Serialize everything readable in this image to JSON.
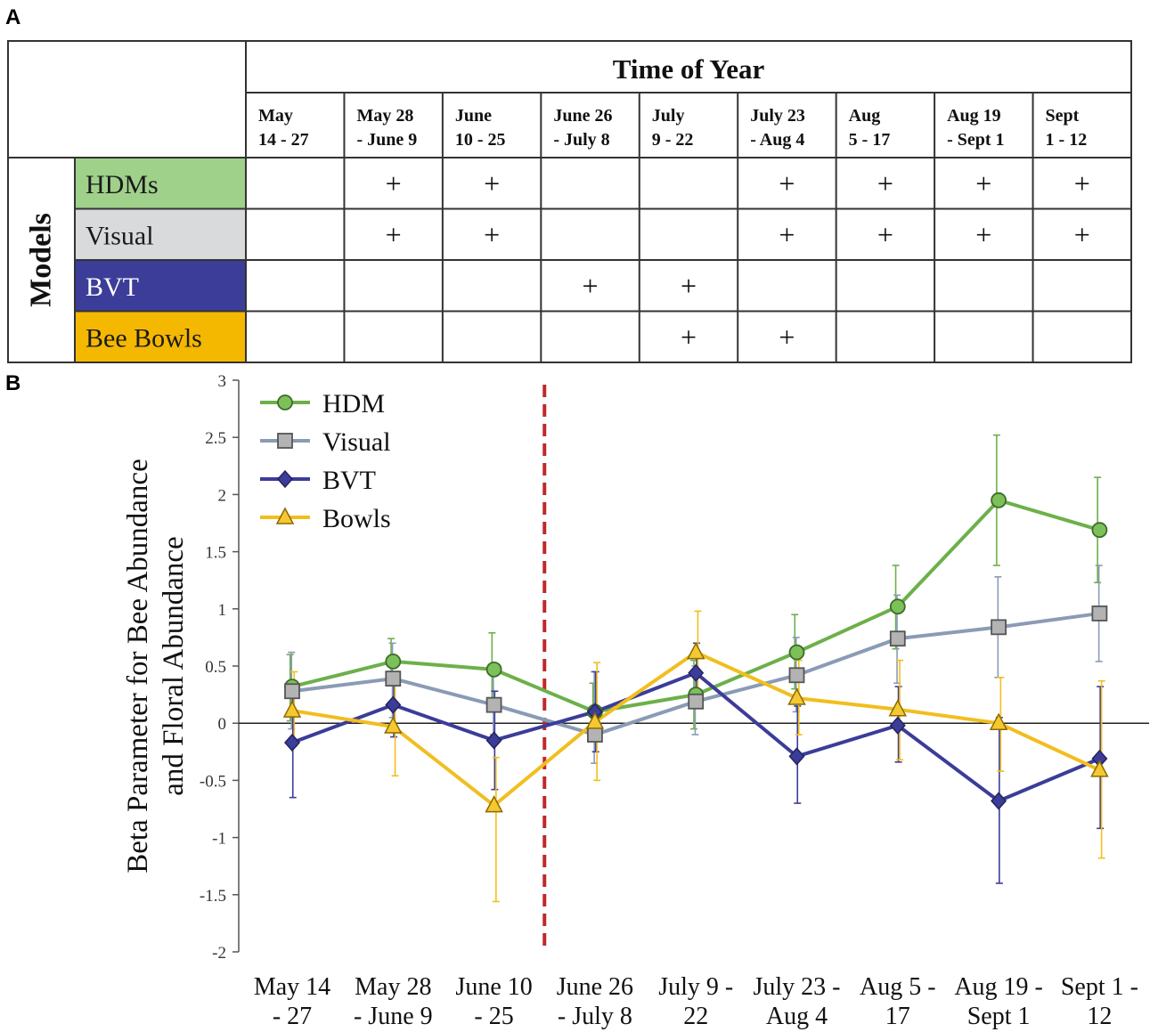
{
  "panels": {
    "a": "A",
    "b": "B"
  },
  "table": {
    "header_title": "Time of Year",
    "row_group_label": "Models",
    "periods": [
      [
        "May",
        "14 - 27"
      ],
      [
        "May 28",
        "- June 9"
      ],
      [
        "June",
        "10 - 25"
      ],
      [
        "June 26",
        "- July 8"
      ],
      [
        "July",
        "9 - 22"
      ],
      [
        "July 23",
        "- Aug 4"
      ],
      [
        "Aug",
        "5 - 17"
      ],
      [
        "Aug 19",
        "- Sept 1"
      ],
      [
        "Sept",
        "1 - 12"
      ]
    ],
    "mark": "+",
    "rows": [
      {
        "label": "HDMs",
        "bg": "#9fd18b",
        "fg": "#1a1a1a",
        "marks": [
          0,
          1,
          1,
          0,
          0,
          1,
          1,
          1,
          1
        ]
      },
      {
        "label": "Visual",
        "bg": "#d9dadb",
        "fg": "#1a1a1a",
        "marks": [
          0,
          1,
          1,
          0,
          0,
          1,
          1,
          1,
          1
        ]
      },
      {
        "label": "BVT",
        "bg": "#3c3c99",
        "fg": "#ffffff",
        "marks": [
          0,
          0,
          0,
          1,
          1,
          0,
          0,
          0,
          0
        ]
      },
      {
        "label": "Bee Bowls",
        "bg": "#f5b800",
        "fg": "#1a1a1a",
        "marks": [
          0,
          0,
          0,
          0,
          1,
          1,
          0,
          0,
          0
        ]
      }
    ]
  },
  "chart_data": {
    "type": "line",
    "ylabel": "Beta Parameter for Bee Abundance and Floral Abundance",
    "ylabel_lines": [
      "Beta Parameter for Bee Abundance",
      "and Floral Abundance"
    ],
    "ylim": [
      -2,
      3
    ],
    "yticks": [
      3,
      2.5,
      2,
      1.5,
      1,
      0.5,
      0,
      -0.5,
      -1,
      -1.5,
      -2
    ],
    "ytick_labels": [
      "3",
      "2.5",
      "2",
      "1.5",
      "1",
      "0.5",
      "0",
      "-0.5",
      "-1",
      "-1.5",
      "-2"
    ],
    "categories": [
      "May 14 - 27",
      "May 28 - June 9",
      "June 10 - 25",
      "June 26 - July 8",
      "July 9 - 22",
      "July 23 - Aug 4",
      "Aug 5 - 17",
      "Aug 19 - Sept 1",
      "Sept 1 - 12"
    ],
    "category_lines": [
      [
        "May 14",
        "- 27"
      ],
      [
        "May 28",
        "- June 9"
      ],
      [
        "June 10",
        "- 25"
      ],
      [
        "June 26",
        "- July 8"
      ],
      [
        "July 9 -",
        "22"
      ],
      [
        "July 23 -",
        "Aug 4"
      ],
      [
        "Aug 5 -",
        "17"
      ],
      [
        "Aug 19 -",
        "Sept 1"
      ],
      [
        "Sept 1 -",
        "12"
      ]
    ],
    "divider_between": [
      2,
      3
    ],
    "divider_color": "#c0282a",
    "legend_position": "top-left",
    "series": [
      {
        "name": "HDM",
        "marker": "circle",
        "color": "#6cb04a",
        "fill": "#7cc05a",
        "values": [
          0.32,
          0.54,
          0.47,
          0.1,
          0.25,
          0.62,
          1.02,
          1.95,
          1.69
        ],
        "err_low": [
          0.02,
          0.35,
          0.15,
          -0.15,
          -0.05,
          0.3,
          0.65,
          1.38,
          1.23
        ],
        "err_high": [
          0.6,
          0.74,
          0.79,
          0.35,
          0.55,
          0.95,
          1.38,
          2.52,
          2.15
        ]
      },
      {
        "name": "Visual",
        "marker": "square",
        "color": "#8a9bb5",
        "fill": "#b3b3b3",
        "values": [
          0.28,
          0.39,
          0.16,
          -0.1,
          0.19,
          0.42,
          0.74,
          0.84,
          0.96
        ],
        "err_low": [
          -0.05,
          0.05,
          -0.1,
          -0.35,
          -0.1,
          0.1,
          0.35,
          0.4,
          0.54
        ],
        "err_high": [
          0.62,
          0.7,
          0.45,
          0.45,
          0.5,
          0.75,
          1.12,
          1.28,
          1.38
        ]
      },
      {
        "name": "BVT",
        "marker": "diamond",
        "color": "#3c3c99",
        "fill": "#3c3c99",
        "values": [
          -0.17,
          0.16,
          -0.15,
          0.1,
          0.44,
          -0.29,
          -0.02,
          -0.68,
          -0.31
        ],
        "err_low": [
          -0.65,
          -0.12,
          -0.58,
          -0.25,
          0.2,
          -0.7,
          -0.34,
          -1.4,
          -0.92
        ],
        "err_high": [
          0.3,
          0.45,
          0.28,
          0.45,
          0.7,
          0.15,
          0.32,
          0.05,
          0.32
        ]
      },
      {
        "name": "Bowls",
        "marker": "triangle",
        "color": "#f2be1e",
        "fill": "#f5c832",
        "values": [
          0.11,
          -0.03,
          -0.72,
          0.01,
          0.62,
          0.22,
          0.12,
          0.0,
          -0.41
        ],
        "err_low": [
          -0.2,
          -0.46,
          -1.56,
          -0.5,
          0.25,
          -0.1,
          -0.32,
          -0.42,
          -1.18
        ],
        "err_high": [
          0.45,
          0.38,
          -0.3,
          0.53,
          0.98,
          0.55,
          0.55,
          0.4,
          0.37
        ]
      }
    ]
  }
}
